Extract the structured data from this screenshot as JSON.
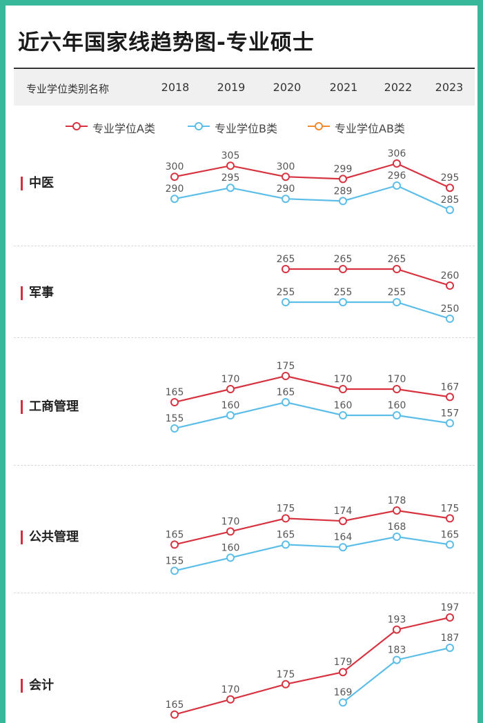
{
  "title": "近六年国家线趋势图-专业硕士",
  "header": {
    "column_name": "专业学位类别名称",
    "years": [
      "2018",
      "2019",
      "2020",
      "2021",
      "2022",
      "2023"
    ]
  },
  "colors": {
    "a": "#d6323f",
    "b": "#5bbde8",
    "ab": "#f08a2c"
  },
  "legend": [
    {
      "key": "a",
      "label": "专业学位A类"
    },
    {
      "key": "b",
      "label": "专业学位B类"
    },
    {
      "key": "ab",
      "label": "专业学位AB类"
    }
  ],
  "chart_data": {
    "type": "line",
    "x": [
      "2018",
      "2019",
      "2020",
      "2021",
      "2022",
      "2023"
    ],
    "series_names": [
      "专业学位A类",
      "专业学位B类",
      "专业学位AB类"
    ],
    "categories": [
      {
        "name": "中医",
        "a": [
          300,
          305,
          300,
          299,
          306,
          295
        ],
        "b": [
          290,
          295,
          290,
          289,
          296,
          285
        ]
      },
      {
        "name": "军事",
        "a": [
          null,
          null,
          265,
          265,
          265,
          260
        ],
        "b": [
          null,
          null,
          255,
          255,
          255,
          250
        ]
      },
      {
        "name": "工商管理",
        "a": [
          165,
          170,
          175,
          170,
          170,
          167
        ],
        "b": [
          155,
          160,
          165,
          160,
          160,
          157
        ]
      },
      {
        "name": "公共管理",
        "a": [
          165,
          170,
          175,
          174,
          178,
          175
        ],
        "b": [
          155,
          160,
          165,
          164,
          168,
          165
        ]
      },
      {
        "name": "会计",
        "a": [
          165,
          170,
          175,
          179,
          193,
          197
        ],
        "b": [
          null,
          null,
          null,
          169,
          183,
          187
        ]
      }
    ]
  }
}
